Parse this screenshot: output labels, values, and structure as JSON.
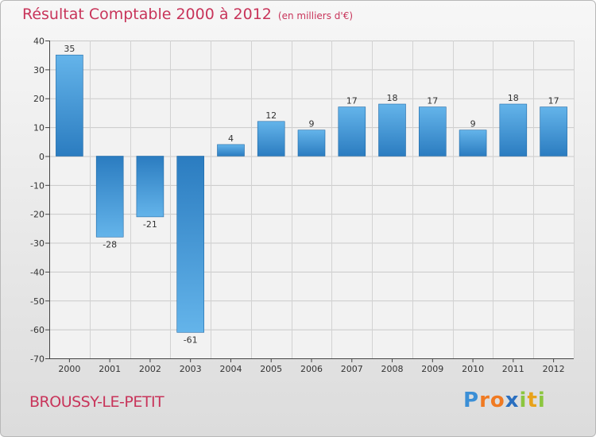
{
  "header": {
    "title": "Résultat Comptable 2000 à 2012",
    "subtitle": "(en milliers d'€)"
  },
  "footer": {
    "town": "BROUSSY-LE-PETIT",
    "brand": "Proxiti",
    "brand_letters": [
      "P",
      "r",
      "o",
      "x",
      "i",
      "t",
      "i"
    ],
    "brand_colors": [
      "#3b8fd6",
      "#f07a22",
      "#f07a22",
      "#2a6fc0",
      "#8cc63f",
      "#e8a21a",
      "#8cc63f"
    ]
  },
  "chart_data": {
    "type": "bar",
    "title": "Résultat Comptable 2000 à 2012",
    "subtitle": "(en milliers d'€)",
    "categories": [
      "2000",
      "2001",
      "2002",
      "2003",
      "2004",
      "2005",
      "2006",
      "2007",
      "2008",
      "2009",
      "2010",
      "2011",
      "2012"
    ],
    "values": [
      35,
      -28,
      -21,
      -61,
      4,
      12,
      9,
      17,
      18,
      17,
      9,
      18,
      17
    ],
    "ylim": [
      -70,
      40
    ],
    "yticks": [
      40,
      30,
      20,
      10,
      0,
      -10,
      -20,
      -30,
      -40,
      -50,
      -60,
      -70
    ],
    "grid": true,
    "legend": "none",
    "colors": {
      "bar_light": "#64b4ea",
      "bar_dark": "#2b7cc0"
    }
  }
}
